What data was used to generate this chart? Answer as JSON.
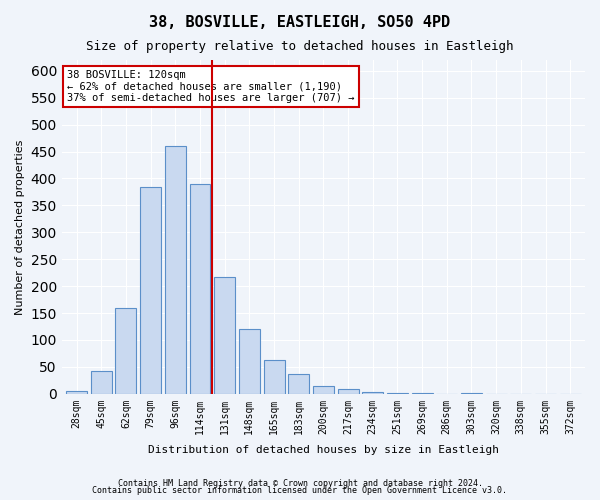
{
  "title1": "38, BOSVILLE, EASTLEIGH, SO50 4PD",
  "title2": "Size of property relative to detached houses in Eastleigh",
  "xlabel": "Distribution of detached houses by size in Eastleigh",
  "ylabel": "Number of detached properties",
  "categories": [
    "28sqm",
    "45sqm",
    "62sqm",
    "79sqm",
    "96sqm",
    "114sqm",
    "131sqm",
    "148sqm",
    "165sqm",
    "183sqm",
    "200sqm",
    "217sqm",
    "234sqm",
    "251sqm",
    "269sqm",
    "286sqm",
    "303sqm",
    "320sqm",
    "338sqm",
    "355sqm",
    "372sqm"
  ],
  "values": [
    5,
    42,
    160,
    385,
    460,
    390,
    217,
    120,
    63,
    37,
    15,
    8,
    4,
    2,
    1,
    0,
    1,
    0,
    0,
    0,
    0
  ],
  "bar_color": "#c9d9f0",
  "bar_edge_color": "#5b8fc9",
  "vline_x": 5.5,
  "vline_color": "#cc0000",
  "annotation_title": "38 BOSVILLE: 120sqm",
  "annotation_line1": "← 62% of detached houses are smaller (1,190)",
  "annotation_line2": "37% of semi-detached houses are larger (707) →",
  "annotation_box_color": "#ffffff",
  "annotation_box_edge": "#cc0000",
  "footnote1": "Contains HM Land Registry data © Crown copyright and database right 2024.",
  "footnote2": "Contains public sector information licensed under the Open Government Licence v3.0.",
  "ylim": [
    0,
    620
  ],
  "bg_color": "#f0f4fa",
  "grid_color": "#ffffff"
}
